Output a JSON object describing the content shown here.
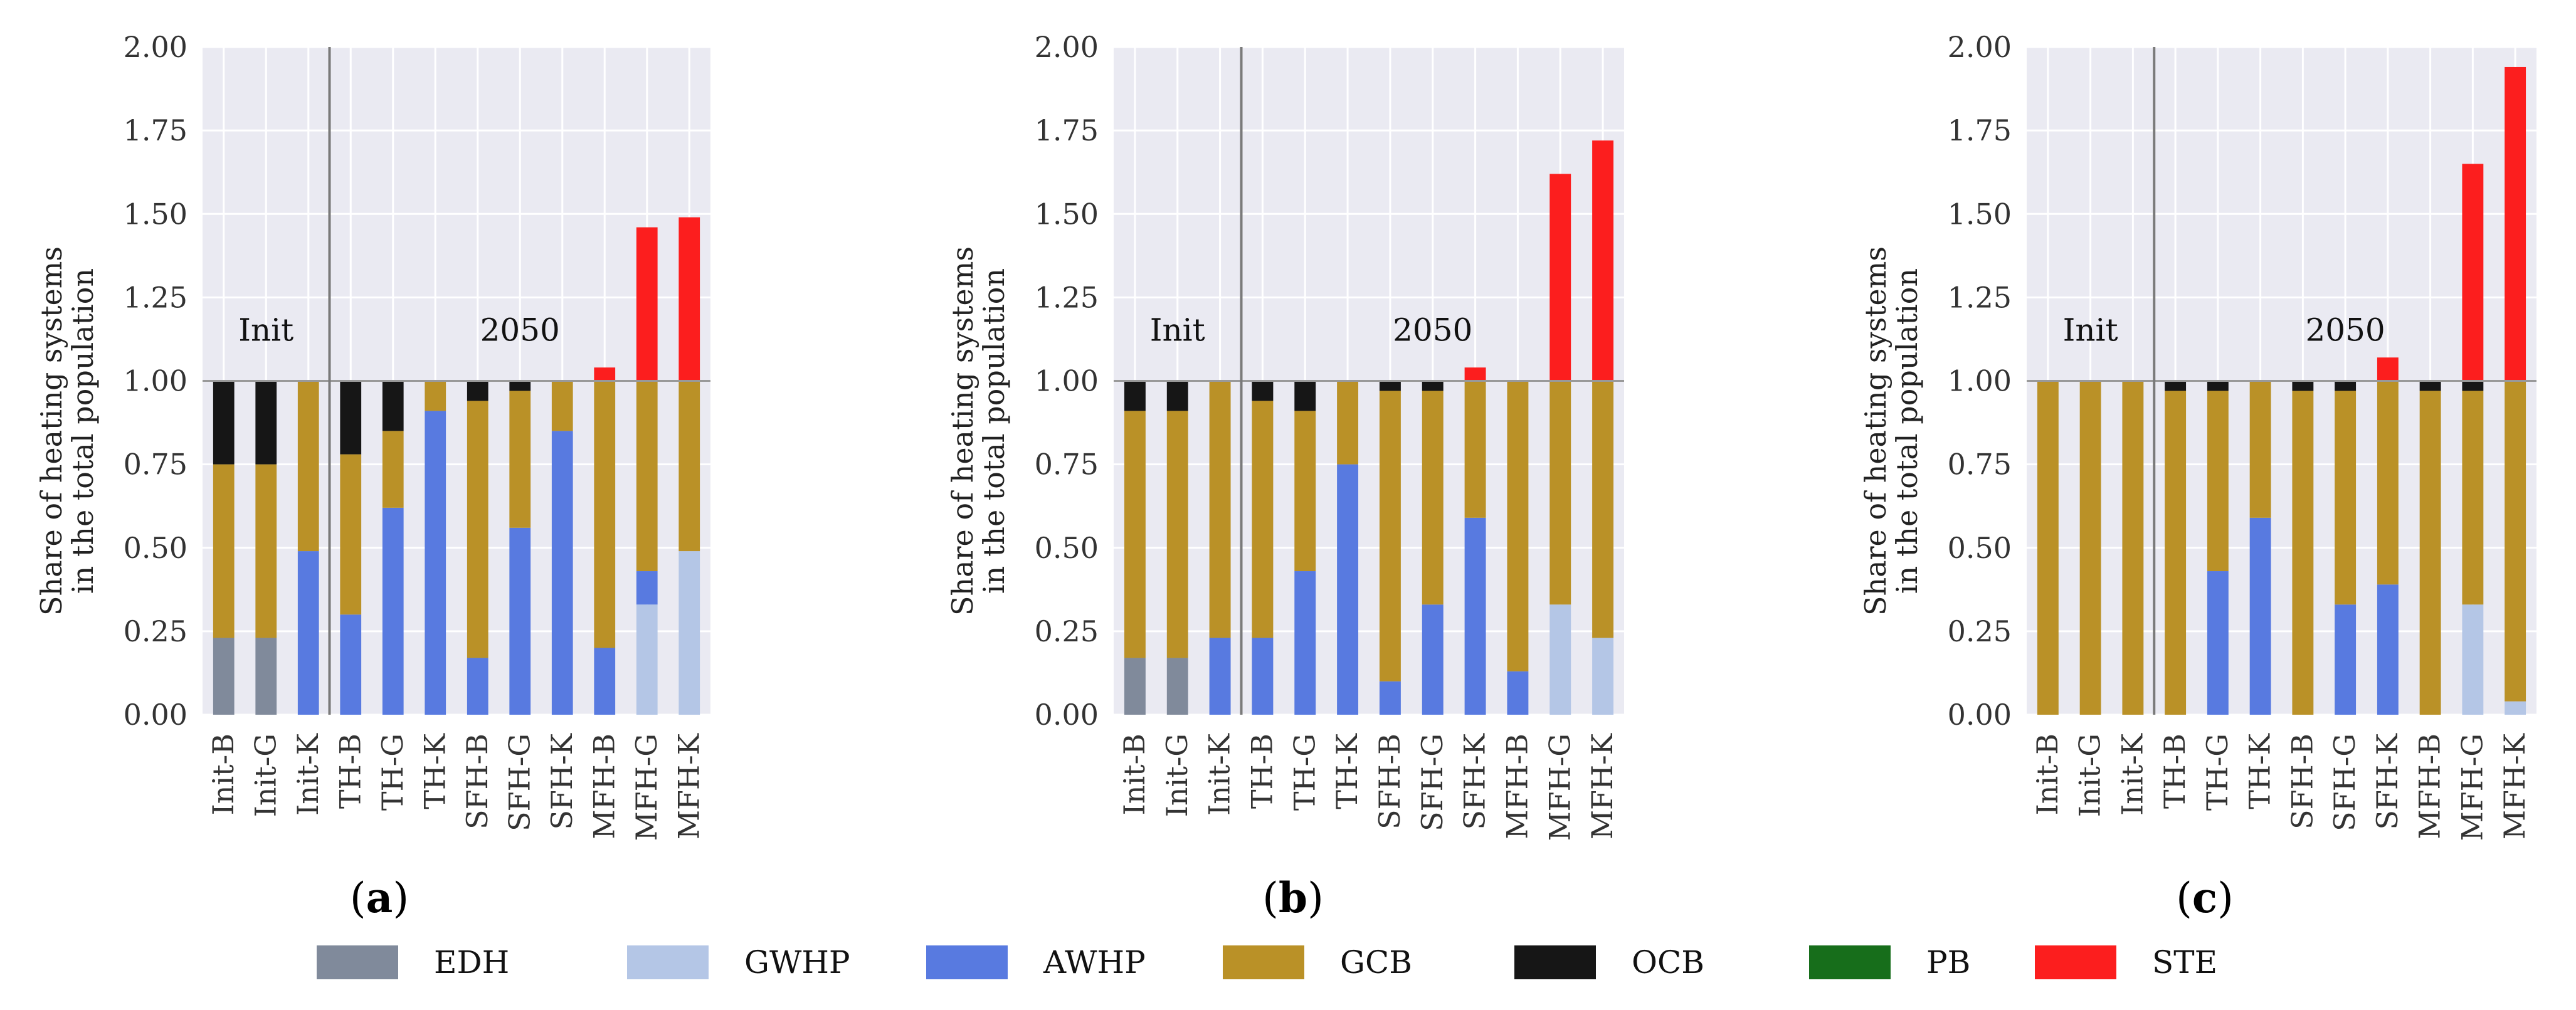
{
  "chart_data": {
    "type": "bar",
    "stacked": true,
    "legend": {
      "position": "bottom",
      "entries": [
        {
          "key": "EDH",
          "label": "EDH",
          "color": "#808a9b"
        },
        {
          "key": "GWHP",
          "label": "GWHP",
          "color": "#b4c6e6"
        },
        {
          "key": "AWHP",
          "label": "AWHP",
          "color": "#587ae0"
        },
        {
          "key": "GCB",
          "label": "GCB",
          "color": "#ba9127"
        },
        {
          "key": "OCB",
          "label": "OCB",
          "color": "#161616"
        },
        {
          "key": "PB",
          "label": "PB",
          "color": "#176e1b"
        },
        {
          "key": "STE",
          "label": "STE",
          "color": "#fc1e1e"
        }
      ]
    },
    "panels": [
      {
        "panel_label_prefix": "(",
        "panel_label": "a",
        "panel_label_suffix": ")",
        "ylabel_line1": "Share of heating systems",
        "ylabel_line2": "in the total population",
        "ylim": [
          0,
          2
        ],
        "yticks": [
          "0.00",
          "0.25",
          "0.50",
          "0.75",
          "1.00",
          "1.25",
          "1.50",
          "1.75",
          "2.00"
        ],
        "annotations": [
          "Init",
          "2050"
        ],
        "categories": [
          "Init-B",
          "Init-G",
          "Init-K",
          "TH-B",
          "TH-G",
          "TH-K",
          "SFH-B",
          "SFH-G",
          "SFH-K",
          "MFH-B",
          "MFH-G",
          "MFH-K"
        ],
        "series": [
          {
            "key": "EDH",
            "values": [
              0.23,
              0.23,
              0,
              0,
              0,
              0,
              0,
              0,
              0,
              0,
              0,
              0
            ]
          },
          {
            "key": "GWHP",
            "values": [
              0,
              0,
              0,
              0,
              0,
              0,
              0,
              0,
              0,
              0,
              0.33,
              0.49
            ]
          },
          {
            "key": "AWHP",
            "values": [
              0,
              0,
              0.49,
              0.3,
              0.62,
              0.91,
              0.17,
              0.56,
              0.85,
              0.2,
              0.1,
              0
            ]
          },
          {
            "key": "GCB",
            "values": [
              0.52,
              0.52,
              0.51,
              0.48,
              0.23,
              0.09,
              0.77,
              0.41,
              0.15,
              0.8,
              0.57,
              0.51
            ]
          },
          {
            "key": "OCB",
            "values": [
              0.25,
              0.25,
              0,
              0.22,
              0.15,
              0,
              0.06,
              0.03,
              0,
              0,
              0,
              0
            ]
          },
          {
            "key": "PB",
            "values": [
              0,
              0,
              0,
              0,
              0,
              0,
              0,
              0,
              0,
              0,
              0,
              0
            ]
          },
          {
            "key": "STE",
            "values": [
              0,
              0,
              0,
              0,
              0,
              0,
              0,
              0,
              0,
              0.04,
              0.46,
              0.49
            ]
          }
        ]
      },
      {
        "panel_label_prefix": "(",
        "panel_label": "b",
        "panel_label_suffix": ")",
        "ylabel_line1": "Share of heating systems",
        "ylabel_line2": "in the total population",
        "ylim": [
          0,
          2
        ],
        "yticks": [
          "0.00",
          "0.25",
          "0.50",
          "0.75",
          "1.00",
          "1.25",
          "1.50",
          "1.75",
          "2.00"
        ],
        "annotations": [
          "Init",
          "2050"
        ],
        "categories": [
          "Init-B",
          "Init-G",
          "Init-K",
          "TH-B",
          "TH-G",
          "TH-K",
          "SFH-B",
          "SFH-G",
          "SFH-K",
          "MFH-B",
          "MFH-G",
          "MFH-K"
        ],
        "series": [
          {
            "key": "EDH",
            "values": [
              0.17,
              0.17,
              0,
              0,
              0,
              0,
              0,
              0,
              0,
              0,
              0,
              0
            ]
          },
          {
            "key": "GWHP",
            "values": [
              0,
              0,
              0,
              0,
              0,
              0,
              0,
              0,
              0,
              0,
              0.33,
              0.23
            ]
          },
          {
            "key": "AWHP",
            "values": [
              0,
              0,
              0.23,
              0.23,
              0.43,
              0.75,
              0.1,
              0.33,
              0.59,
              0.13,
              0,
              0
            ]
          },
          {
            "key": "GCB",
            "values": [
              0.74,
              0.74,
              0.77,
              0.71,
              0.48,
              0.25,
              0.87,
              0.64,
              0.41,
              0.87,
              0.67,
              0.77
            ]
          },
          {
            "key": "OCB",
            "values": [
              0.09,
              0.09,
              0,
              0.06,
              0.09,
              0,
              0.03,
              0.03,
              0,
              0,
              0,
              0
            ]
          },
          {
            "key": "PB",
            "values": [
              0,
              0,
              0,
              0,
              0,
              0,
              0,
              0,
              0,
              0,
              0,
              0
            ]
          },
          {
            "key": "STE",
            "values": [
              0,
              0,
              0,
              0,
              0,
              0,
              0,
              0,
              0.04,
              0,
              0.62,
              0.72
            ]
          }
        ]
      },
      {
        "panel_label_prefix": "(",
        "panel_label": "c",
        "panel_label_suffix": ")",
        "ylabel_line1": "Share of heating systems",
        "ylabel_line2": "in the total population",
        "ylim": [
          0,
          2
        ],
        "yticks": [
          "0.00",
          "0.25",
          "0.50",
          "0.75",
          "1.00",
          "1.25",
          "1.50",
          "1.75",
          "2.00"
        ],
        "annotations": [
          "Init",
          "2050"
        ],
        "categories": [
          "Init-B",
          "Init-G",
          "Init-K",
          "TH-B",
          "TH-G",
          "TH-K",
          "SFH-B",
          "SFH-G",
          "SFH-K",
          "MFH-B",
          "MFH-G",
          "MFH-K"
        ],
        "series": [
          {
            "key": "EDH",
            "values": [
              0,
              0,
              0,
              0,
              0,
              0,
              0,
              0,
              0,
              0,
              0,
              0
            ]
          },
          {
            "key": "GWHP",
            "values": [
              0,
              0,
              0,
              0,
              0,
              0,
              0,
              0,
              0,
              0,
              0.33,
              0.04
            ]
          },
          {
            "key": "AWHP",
            "values": [
              0,
              0,
              0,
              0,
              0.43,
              0.59,
              0,
              0.33,
              0.39,
              0,
              0,
              0
            ]
          },
          {
            "key": "GCB",
            "values": [
              1.0,
              1.0,
              1.0,
              0.97,
              0.54,
              0.41,
              0.97,
              0.64,
              0.61,
              0.97,
              0.64,
              0.96
            ]
          },
          {
            "key": "OCB",
            "values": [
              0,
              0,
              0,
              0.03,
              0.03,
              0,
              0.03,
              0.03,
              0,
              0.03,
              0.03,
              0
            ]
          },
          {
            "key": "PB",
            "values": [
              0,
              0,
              0,
              0,
              0,
              0,
              0,
              0,
              0,
              0,
              0,
              0
            ]
          },
          {
            "key": "STE",
            "values": [
              0,
              0,
              0,
              0,
              0,
              0,
              0,
              0,
              0.07,
              0,
              0.65,
              0.94
            ]
          }
        ]
      }
    ]
  }
}
